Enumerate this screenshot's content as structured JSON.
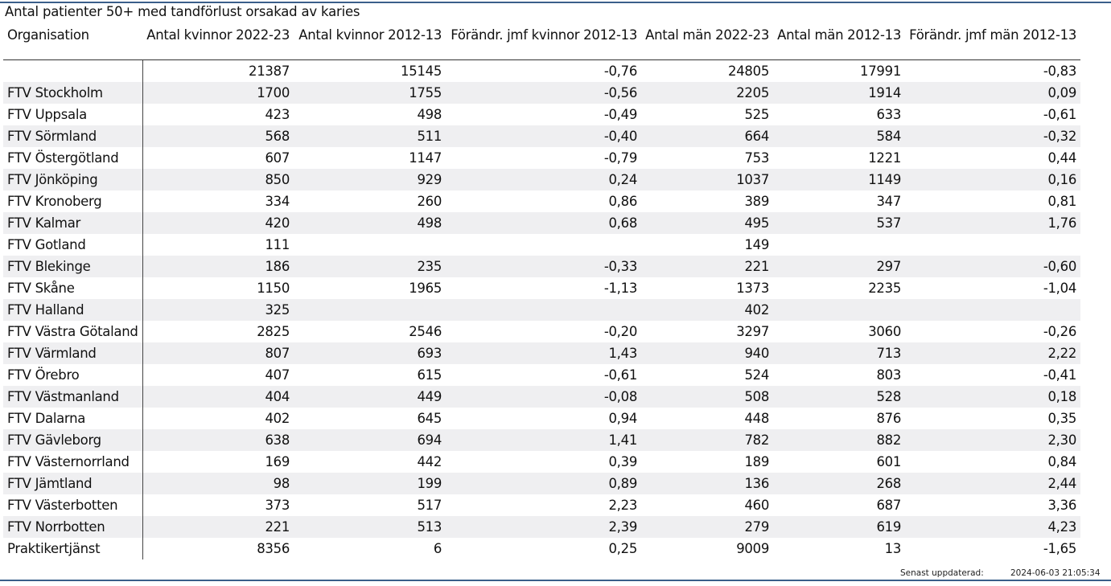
{
  "title": "Antal patienter 50+ med tandförlust orsakad av karies",
  "headers": [
    "Organisation",
    "Antal kvinnor 2022-23",
    "Antal kvinnor 2012-13",
    "Förändr. jmf kvinnor 2012-13",
    "Antal män 2022-23",
    "Antal män 2012-13",
    "Förändr. jmf män 2012-13"
  ],
  "rows": [
    [
      "",
      "21387",
      "15145",
      "-0,76",
      "24805",
      "17991",
      "-0,83"
    ],
    [
      "FTV Stockholm",
      "1700",
      "1755",
      "-0,56",
      "2205",
      "1914",
      "0,09"
    ],
    [
      "FTV Uppsala",
      "423",
      "498",
      "-0,49",
      "525",
      "633",
      "-0,61"
    ],
    [
      "FTV Sörmland",
      "568",
      "511",
      "-0,40",
      "664",
      "584",
      "-0,32"
    ],
    [
      "FTV Östergötland",
      "607",
      "1147",
      "-0,79",
      "753",
      "1221",
      "0,44"
    ],
    [
      "FTV Jönköping",
      "850",
      "929",
      "0,24",
      "1037",
      "1149",
      "0,16"
    ],
    [
      "FTV Kronoberg",
      "334",
      "260",
      "0,86",
      "389",
      "347",
      "0,81"
    ],
    [
      "FTV Kalmar",
      "420",
      "498",
      "0,68",
      "495",
      "537",
      "1,76"
    ],
    [
      "FTV Gotland",
      "111",
      "",
      "",
      "149",
      "",
      ""
    ],
    [
      "FTV Blekinge",
      "186",
      "235",
      "-0,33",
      "221",
      "297",
      "-0,60"
    ],
    [
      "FTV Skåne",
      "1150",
      "1965",
      "-1,13",
      "1373",
      "2235",
      "-1,04"
    ],
    [
      "FTV Halland",
      "325",
      "",
      "",
      "402",
      "",
      ""
    ],
    [
      "FTV Västra Götaland",
      "2825",
      "2546",
      "-0,20",
      "3297",
      "3060",
      "-0,26"
    ],
    [
      "FTV Värmland",
      "807",
      "693",
      "1,43",
      "940",
      "713",
      "2,22"
    ],
    [
      "FTV Örebro",
      "407",
      "615",
      "-0,61",
      "524",
      "803",
      "-0,41"
    ],
    [
      "FTV Västmanland",
      "404",
      "449",
      "-0,08",
      "508",
      "528",
      "0,18"
    ],
    [
      "FTV Dalarna",
      "402",
      "645",
      "0,94",
      "448",
      "876",
      "0,35"
    ],
    [
      "FTV Gävleborg",
      "638",
      "694",
      "1,41",
      "782",
      "882",
      "2,30"
    ],
    [
      "FTV Västernorrland",
      "169",
      "442",
      "0,39",
      "189",
      "601",
      "0,84"
    ],
    [
      "FTV Jämtland",
      "98",
      "199",
      "0,89",
      "136",
      "268",
      "2,44"
    ],
    [
      "FTV Västerbotten",
      "373",
      "517",
      "2,23",
      "460",
      "687",
      "3,36"
    ],
    [
      "FTV Norrbotten",
      "221",
      "513",
      "2,39",
      "279",
      "619",
      "4,23"
    ],
    [
      "Praktikertjänst",
      "8356",
      "6",
      "0,25",
      "9009",
      "13",
      "-1,65"
    ]
  ],
  "footer": {
    "label": "Senast uppdaterad:",
    "timestamp": "2024-06-03 21:05:34"
  },
  "colors": {
    "rule": "#3a5f8a",
    "row_stripe": "#efeff1"
  }
}
